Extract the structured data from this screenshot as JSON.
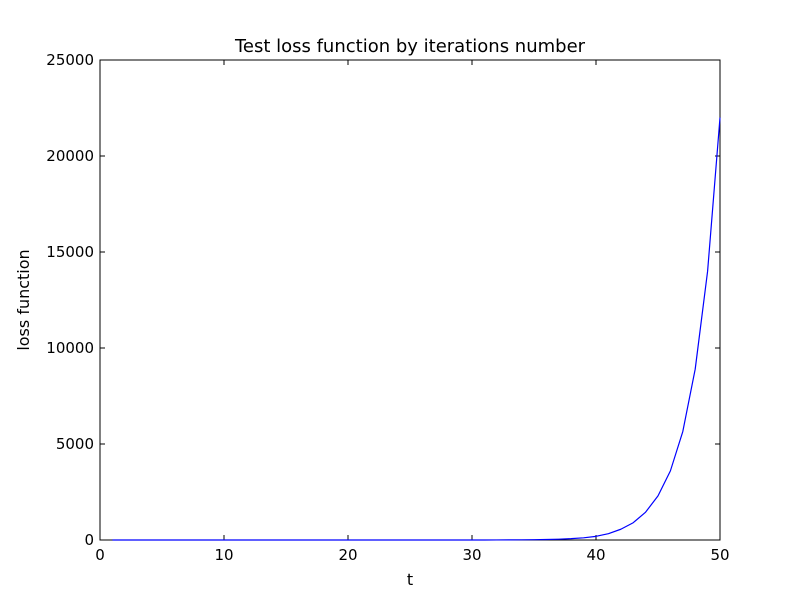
{
  "chart_data": {
    "type": "line",
    "title": "Test loss function by iterations number",
    "xlabel": "t",
    "ylabel": "loss function",
    "xlim": [
      0,
      50
    ],
    "ylim": [
      0,
      25000
    ],
    "xticks": [
      0,
      10,
      20,
      30,
      40,
      50
    ],
    "yticks": [
      0,
      5000,
      10000,
      15000,
      20000,
      25000
    ],
    "grid": false,
    "series": [
      {
        "color": "#0000ff",
        "x": [
          1,
          2,
          3,
          4,
          5,
          6,
          7,
          8,
          9,
          10,
          11,
          12,
          13,
          14,
          15,
          16,
          17,
          18,
          19,
          20,
          21,
          22,
          23,
          24,
          25,
          26,
          27,
          28,
          29,
          30,
          31,
          32,
          33,
          34,
          35,
          36,
          37,
          38,
          39,
          40,
          41,
          42,
          43,
          44,
          45,
          46,
          47,
          48,
          49,
          50
        ],
        "y": [
          0,
          0,
          0,
          0,
          0,
          0,
          0,
          0,
          0,
          0,
          0,
          0,
          0,
          0,
          0,
          0,
          0,
          0,
          0,
          0,
          0,
          0,
          0,
          0,
          0,
          0,
          0,
          0,
          0,
          0,
          1,
          3,
          5,
          9,
          15,
          25,
          42,
          70,
          115,
          190,
          330,
          560,
          900,
          1450,
          2300,
          3600,
          5650,
          8900,
          14000,
          22000
        ]
      }
    ]
  }
}
